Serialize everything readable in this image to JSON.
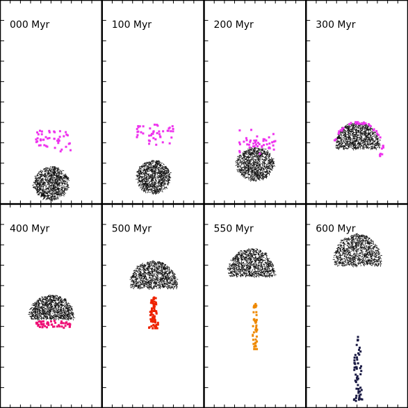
{
  "panels": [
    {
      "label": "000 Myr"
    },
    {
      "label": "100 Myr"
    },
    {
      "label": "200 Myr"
    },
    {
      "label": "300 Myr"
    },
    {
      "label": "400 Myr"
    },
    {
      "label": "500 Myr"
    },
    {
      "label": "550 Myr"
    },
    {
      "label": "600 Myr"
    }
  ]
}
